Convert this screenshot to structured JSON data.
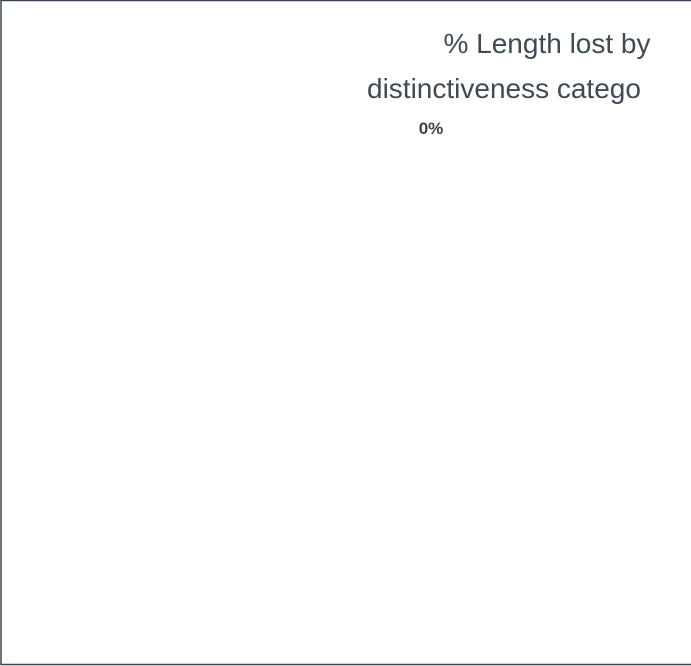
{
  "chart_data": {
    "type": "pie",
    "title": [
      "% Length lost by",
      "distinctiveness catego"
    ],
    "values": [
      0
    ],
    "value_labels": [
      "0%"
    ],
    "color": "#4472c4"
  }
}
